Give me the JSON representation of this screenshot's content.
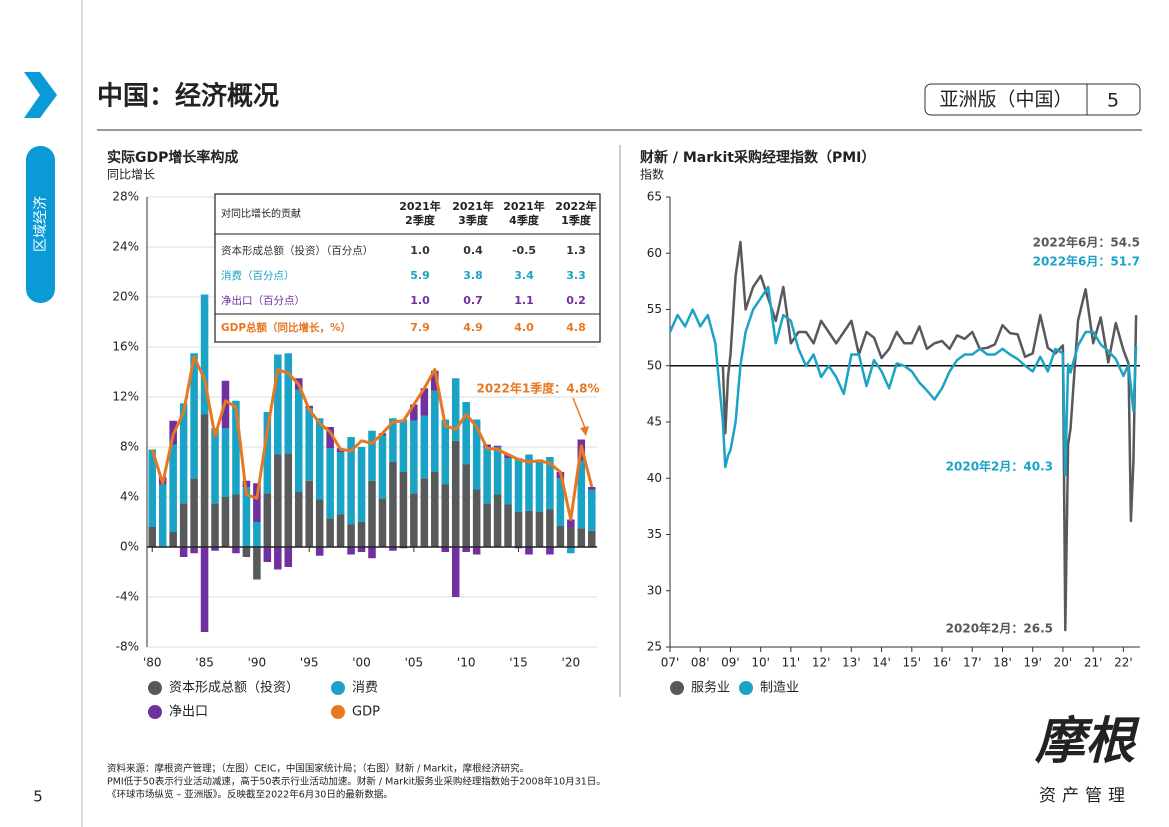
{
  "page": {
    "title": "中国：经济概况",
    "edition": "亚洲版（中国）",
    "page_number": "5",
    "sidebar": "区域经济",
    "footnotes": [
      "资料来源：摩根资产管理；（左图）CEIC，中国国家统计局；（右图）财新 / Markit，摩根经济研究。",
      "PMI低于50表示行业活动减速，高于50表示行业活动加速。财新 / Markit服务业采购经理指数始于2008年10月31日。",
      "《环球市场纵览 – 亚洲版》。反映截至2022年6月30日的最新数据。"
    ],
    "logo": "摩根",
    "logo_sub": "资产管理"
  },
  "chart_data": [
    {
      "type": "bar",
      "stacked": true,
      "title": "实际GDP增长率构成",
      "subtitle": "同比增长",
      "x": [
        1980,
        1981,
        1982,
        1983,
        1984,
        1985,
        1986,
        1987,
        1988,
        1989,
        1990,
        1991,
        1992,
        1993,
        1994,
        1995,
        1996,
        1997,
        1998,
        1999,
        2000,
        2001,
        2002,
        2003,
        2004,
        2005,
        2006,
        2007,
        2008,
        2009,
        2010,
        2011,
        2012,
        2013,
        2014,
        2015,
        2016,
        2017,
        2018,
        2019,
        2020,
        2021,
        2022
      ],
      "xlim": [
        1979.5,
        2022.5
      ],
      "xticks": [
        {
          "value": 1980,
          "label": "'80"
        },
        {
          "value": 1985,
          "label": "'85"
        },
        {
          "value": 1990,
          "label": "'90"
        },
        {
          "value": 1995,
          "label": "'95"
        },
        {
          "value": 2000,
          "label": "'00"
        },
        {
          "value": 2005,
          "label": "'05"
        },
        {
          "value": 2010,
          "label": "'10"
        },
        {
          "value": 2015,
          "label": "'15"
        },
        {
          "value": 2020,
          "label": "'20"
        }
      ],
      "ylim": [
        -8,
        28
      ],
      "yticks": [
        {
          "value": -8,
          "label": "-8%"
        },
        {
          "value": -4,
          "label": "-4%"
        },
        {
          "value": 0,
          "label": "0%"
        },
        {
          "value": 4,
          "label": "4%"
        },
        {
          "value": 8,
          "label": "8%"
        },
        {
          "value": 12,
          "label": "12%"
        },
        {
          "value": 16,
          "label": "16%"
        },
        {
          "value": 20,
          "label": "20%"
        },
        {
          "value": 24,
          "label": "24%"
        },
        {
          "value": 28,
          "label": "28%"
        }
      ],
      "grid": true,
      "series": [
        {
          "name": "资本形成总额（投资）",
          "color": "#58595b",
          "values": [
            1.6,
            0.0,
            1.2,
            3.5,
            5.5,
            10.6,
            3.5,
            4.0,
            4.2,
            -0.8,
            -2.6,
            4.3,
            7.4,
            7.5,
            4.4,
            5.3,
            3.8,
            2.3,
            2.6,
            1.8,
            2.0,
            5.3,
            3.9,
            6.8,
            6.0,
            4.3,
            5.5,
            6.0,
            5.0,
            8.5,
            6.6,
            4.6,
            3.5,
            4.2,
            3.4,
            2.8,
            2.9,
            2.8,
            3.0,
            1.7,
            1.6,
            1.5,
            1.3
          ]
        },
        {
          "name": "消费",
          "color": "#1ba3c6",
          "values": [
            6.2,
            5.0,
            7.0,
            8.0,
            10.0,
            9.6,
            6.0,
            5.5,
            7.5,
            4.8,
            2.0,
            6.5,
            8.0,
            8.0,
            8.2,
            5.8,
            6.5,
            5.6,
            5.0,
            7.0,
            6.0,
            4.0,
            5.0,
            3.5,
            4.2,
            5.8,
            5.0,
            6.5,
            5.2,
            5.0,
            5.0,
            5.6,
            4.5,
            3.8,
            3.7,
            4.3,
            4.5,
            4.0,
            4.2,
            3.8,
            -0.5,
            5.4,
            3.3
          ]
        },
        {
          "name": "净出口",
          "color": "#7030a0",
          "values": [
            0.0,
            0.6,
            1.9,
            -0.8,
            -0.5,
            -6.8,
            -0.3,
            3.8,
            -0.5,
            0.5,
            3.1,
            -1.2,
            -1.8,
            -1.6,
            0.9,
            0.2,
            -0.7,
            1.7,
            0.3,
            -0.6,
            -0.4,
            -0.9,
            0.2,
            -0.3,
            -0.1,
            1.3,
            2.2,
            1.6,
            -0.4,
            -4.0,
            -0.4,
            -0.6,
            0.2,
            0.1,
            0.3,
            -0.1,
            -0.6,
            0.2,
            -0.6,
            0.5,
            0.6,
            1.7,
            0.2
          ]
        },
        {
          "name": "GDP",
          "color": "#e87722",
          "type": "line",
          "values": [
            7.8,
            5.1,
            9.0,
            10.8,
            15.2,
            13.4,
            8.9,
            11.7,
            11.2,
            4.2,
            3.9,
            9.3,
            14.2,
            13.9,
            13.0,
            11.0,
            9.9,
            9.2,
            7.8,
            7.7,
            8.5,
            8.3,
            9.1,
            10.0,
            10.1,
            11.4,
            12.7,
            14.2,
            9.7,
            9.4,
            10.6,
            9.6,
            7.9,
            7.8,
            7.4,
            7.0,
            6.8,
            6.9,
            6.7,
            6.0,
            2.2,
            8.1,
            4.8
          ]
        }
      ],
      "annotations": [
        {
          "text": "2022年1季度：4.8%",
          "color": "#e87722"
        }
      ],
      "table": {
        "header": "对同比增长的贡献",
        "columns": [
          [
            "2021年",
            "2季度"
          ],
          [
            "2021年",
            "3季度"
          ],
          [
            "2021年",
            "4季度"
          ],
          [
            "2022年",
            "1季度"
          ]
        ],
        "rows": [
          [
            "资本形成总额（投资）（百分点）",
            "1.0",
            "0.4",
            "-0.5",
            "1.3"
          ],
          [
            "消费（百分点）",
            "5.9",
            "3.8",
            "3.4",
            "3.3"
          ],
          [
            "净出口（百分点）",
            "1.0",
            "0.7",
            "1.1",
            "0.2"
          ],
          [
            "GDP总额（同比增长，%）",
            "7.9",
            "4.9",
            "4.0",
            "4.8"
          ]
        ],
        "row_colors": [
          "#333333",
          "#1ba3c6",
          "#7030a0",
          "#e87722"
        ]
      }
    },
    {
      "type": "line",
      "title": "财新 / Markit采购经理指数（PMI）",
      "subtitle": "指数",
      "x": [
        2007.0,
        2007.25,
        2007.5,
        2007.75,
        2008.0,
        2008.25,
        2008.5,
        2008.75,
        2008.83,
        2008.92,
        2009.0,
        2009.17,
        2009.33,
        2009.5,
        2009.75,
        2010.0,
        2010.25,
        2010.5,
        2010.75,
        2011.0,
        2011.25,
        2011.5,
        2011.75,
        2012.0,
        2012.25,
        2012.5,
        2012.75,
        2013.0,
        2013.25,
        2013.5,
        2013.75,
        2014.0,
        2014.25,
        2014.5,
        2014.75,
        2015.0,
        2015.25,
        2015.5,
        2015.75,
        2016.0,
        2016.25,
        2016.5,
        2016.75,
        2017.0,
        2017.25,
        2017.5,
        2017.75,
        2018.0,
        2018.25,
        2018.5,
        2018.75,
        2019.0,
        2019.25,
        2019.5,
        2019.75,
        2020.0,
        2020.08,
        2020.17,
        2020.25,
        2020.5,
        2020.75,
        2021.0,
        2021.25,
        2021.5,
        2021.75,
        2022.0,
        2022.17,
        2022.25,
        2022.33,
        2022.42
      ],
      "xlim": [
        2007,
        2022.55
      ],
      "xticks": [
        {
          "value": 2007,
          "label": "07'"
        },
        {
          "value": 2008,
          "label": "08'"
        },
        {
          "value": 2009,
          "label": "09'"
        },
        {
          "value": 2010,
          "label": "10'"
        },
        {
          "value": 2011,
          "label": "11'"
        },
        {
          "value": 2012,
          "label": "12'"
        },
        {
          "value": 2013,
          "label": "13'"
        },
        {
          "value": 2014,
          "label": "14'"
        },
        {
          "value": 2015,
          "label": "15'"
        },
        {
          "value": 2016,
          "label": "16'"
        },
        {
          "value": 2017,
          "label": "17'"
        },
        {
          "value": 2018,
          "label": "18'"
        },
        {
          "value": 2019,
          "label": "19'"
        },
        {
          "value": 2020,
          "label": "20'"
        },
        {
          "value": 2021,
          "label": "21'"
        },
        {
          "value": 2022,
          "label": "22'"
        }
      ],
      "ylim": [
        25,
        65
      ],
      "yticks": [
        25,
        30,
        35,
        40,
        45,
        50,
        55,
        60,
        65
      ],
      "hline": 50,
      "series": [
        {
          "name": "服务业",
          "color": "#58595b",
          "values": [
            null,
            null,
            null,
            null,
            null,
            null,
            null,
            50,
            44,
            49,
            51,
            58,
            61,
            55,
            57,
            58,
            56,
            54,
            57,
            52,
            53,
            53,
            52,
            54,
            53,
            52,
            53,
            54,
            51,
            53,
            52.5,
            50.7,
            51.5,
            53,
            52,
            52,
            53.5,
            51.5,
            52,
            52.2,
            51.5,
            52.7,
            52.4,
            53,
            51.5,
            51.6,
            51.9,
            53.6,
            52.9,
            52.8,
            50.8,
            51.1,
            54.5,
            51.6,
            51.1,
            51.8,
            26.5,
            43,
            44.4,
            54,
            56.8,
            52,
            54.3,
            50.3,
            53.8,
            51.4,
            50.2,
            36.2,
            41.4,
            54.5
          ]
        },
        {
          "name": "制造业",
          "color": "#1ba3c6",
          "values": [
            53,
            54.5,
            53.5,
            55,
            53.5,
            54.5,
            52,
            45,
            41,
            42,
            42.5,
            45,
            50,
            53,
            55,
            56,
            57,
            52,
            54.5,
            54,
            51.5,
            50,
            51,
            49,
            50,
            49,
            47.5,
            51,
            51,
            48.2,
            50.5,
            49.5,
            48,
            50.2,
            50,
            49.5,
            48.5,
            47.8,
            47,
            48,
            49.5,
            50.5,
            51,
            51,
            51.5,
            51,
            51,
            51.5,
            51,
            50.6,
            50,
            49.5,
            50.8,
            49.5,
            51.5,
            51.1,
            40.3,
            50.1,
            49.4,
            51.8,
            53,
            53,
            51.9,
            51.3,
            50.6,
            49.1,
            50.1,
            48.1,
            46,
            51.7
          ]
        }
      ],
      "annotations": [
        {
          "text": "2022年6月：54.5",
          "color": "#58595b"
        },
        {
          "text": "2022年6月：51.7",
          "color": "#1ba3c6"
        },
        {
          "text": "2020年2月：40.3",
          "color": "#1ba3c6"
        },
        {
          "text": "2020年2月：26.5",
          "color": "#58595b"
        }
      ]
    }
  ]
}
